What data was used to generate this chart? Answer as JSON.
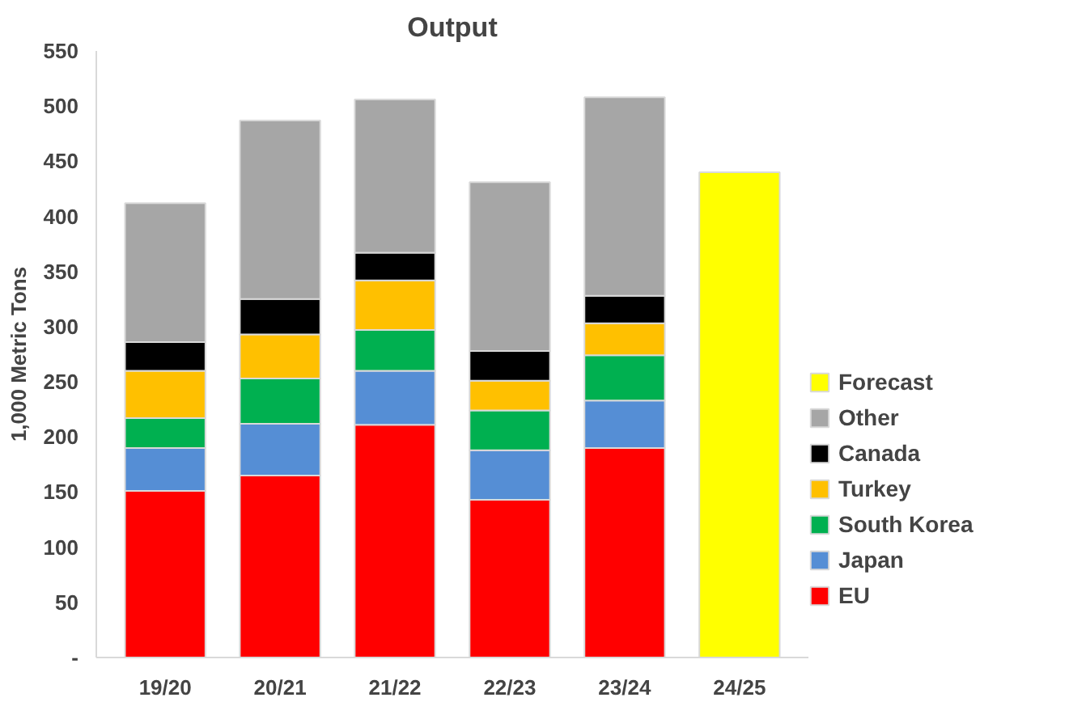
{
  "chart_data": {
    "type": "bar",
    "title": "Output",
    "ylabel": "1,000 Metric Tons",
    "stacked": true,
    "legend": "right",
    "grid": false,
    "categories": [
      "19/20",
      "20/21",
      "21/22",
      "22/23",
      "23/24",
      "24/25"
    ],
    "ylim": [
      0,
      550
    ],
    "yticks": [
      {
        "value": 0,
        "label": "-"
      },
      50,
      100,
      150,
      200,
      250,
      300,
      350,
      400,
      450,
      500,
      550
    ],
    "series": [
      {
        "name": "EU",
        "color": "#ff0000",
        "values": [
          151,
          165,
          211,
          143,
          190,
          null
        ]
      },
      {
        "name": "Japan",
        "color": "#558ed5",
        "values": [
          39,
          47,
          49,
          45,
          43,
          null
        ]
      },
      {
        "name": "South Korea",
        "color": "#00b050",
        "values": [
          27,
          41,
          37,
          36,
          41,
          null
        ]
      },
      {
        "name": "Turkey",
        "color": "#ffc000",
        "values": [
          43,
          40,
          45,
          27,
          29,
          null
        ]
      },
      {
        "name": "Canada",
        "color": "#000000",
        "values": [
          26,
          32,
          25,
          27,
          25,
          null
        ]
      },
      {
        "name": "Other",
        "color": "#a6a6a6",
        "values": [
          126,
          162,
          139,
          153,
          180,
          null
        ]
      },
      {
        "name": "Forecast",
        "color": "#ffff00",
        "values": [
          null,
          null,
          null,
          null,
          null,
          440
        ]
      }
    ]
  }
}
